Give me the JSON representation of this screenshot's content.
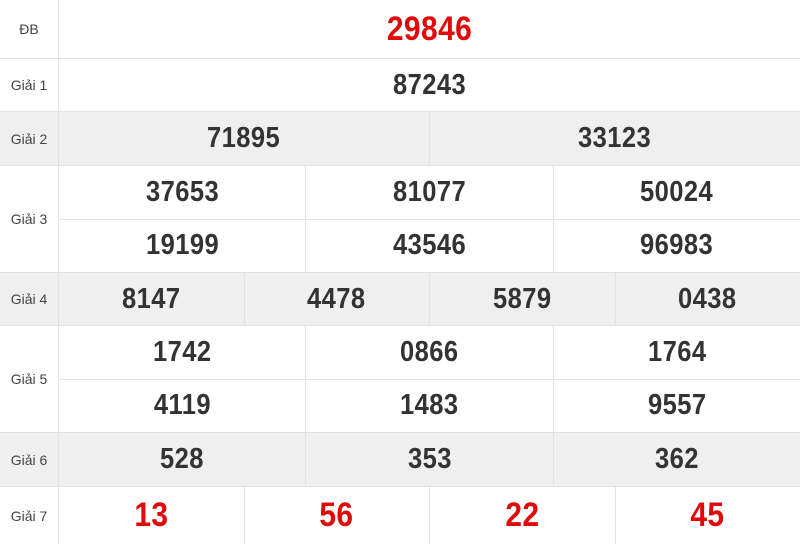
{
  "colors": {
    "highlight": "#e00a0a",
    "text": "#333333",
    "alt_row": "#efefef"
  },
  "rows": [
    {
      "label": "ĐB",
      "lines": [
        [
          "29846"
        ]
      ],
      "red": true
    },
    {
      "label": "Giải 1",
      "lines": [
        [
          "87243"
        ]
      ]
    },
    {
      "label": "Giải 2",
      "lines": [
        [
          "71895",
          "33123"
        ]
      ]
    },
    {
      "label": "Giải 3",
      "lines": [
        [
          "37653",
          "81077",
          "50024"
        ],
        [
          "19199",
          "43546",
          "96983"
        ]
      ]
    },
    {
      "label": "Giải 4",
      "lines": [
        [
          "8147",
          "4478",
          "5879",
          "0438"
        ]
      ]
    },
    {
      "label": "Giải 5",
      "lines": [
        [
          "1742",
          "0866",
          "1764"
        ],
        [
          "4119",
          "1483",
          "9557"
        ]
      ]
    },
    {
      "label": "Giải 6",
      "lines": [
        [
          "528",
          "353",
          "362"
        ]
      ]
    },
    {
      "label": "Giải 7",
      "lines": [
        [
          "13",
          "56",
          "22",
          "45"
        ]
      ],
      "red": true
    }
  ]
}
